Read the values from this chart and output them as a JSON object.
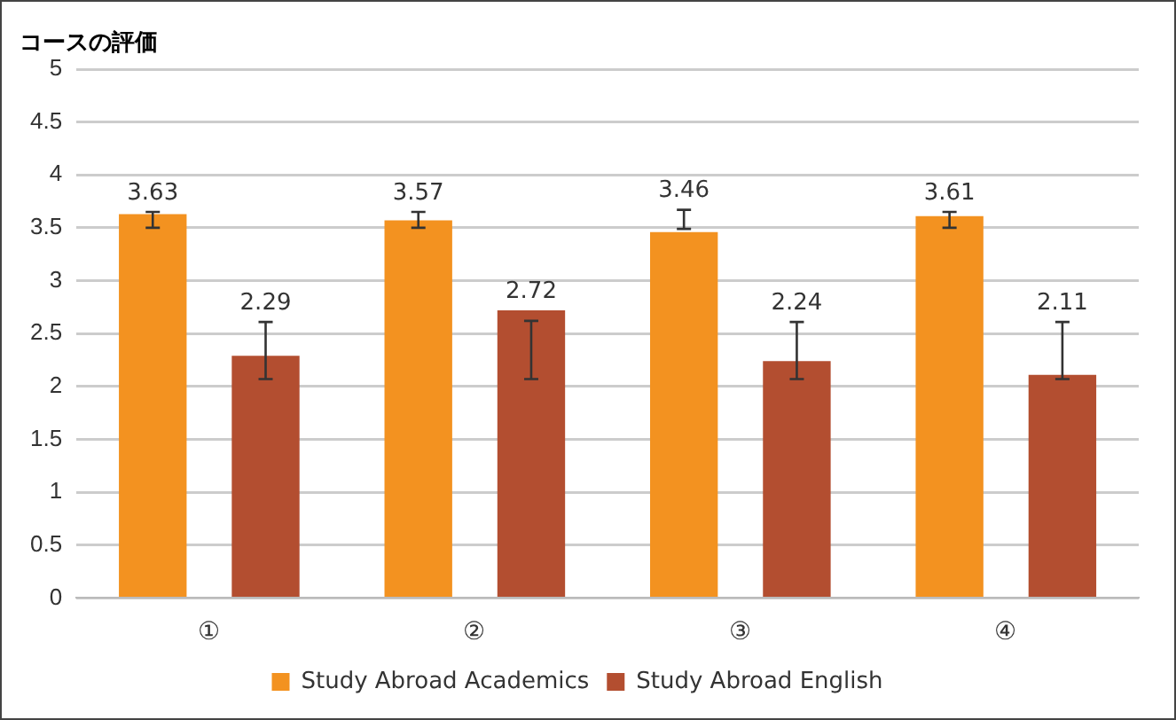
{
  "chart_data": {
    "type": "bar",
    "title": "コースの評価",
    "categories": [
      "①",
      "②",
      "③",
      "④"
    ],
    "series": [
      {
        "name": "Study Abroad Academics",
        "color": "#f39220",
        "values": [
          3.63,
          3.57,
          3.46,
          3.61
        ],
        "errors": [
          [
            3.5,
            3.65
          ],
          [
            3.5,
            3.65
          ],
          [
            3.49,
            3.67
          ],
          [
            3.5,
            3.65
          ]
        ]
      },
      {
        "name": "Study Abroad English",
        "color": "#b34e30",
        "values": [
          2.29,
          2.72,
          2.24,
          2.11
        ],
        "errors": [
          [
            2.07,
            2.61
          ],
          [
            2.07,
            2.62
          ],
          [
            2.07,
            2.61
          ],
          [
            2.07,
            2.61
          ]
        ]
      }
    ],
    "ylim": [
      0,
      5
    ],
    "yticks": [
      0,
      0.5,
      1,
      1.5,
      2,
      2.5,
      3,
      3.5,
      4,
      4.5,
      5
    ],
    "grid": "y",
    "legend": "bottom",
    "data_labels": true
  }
}
